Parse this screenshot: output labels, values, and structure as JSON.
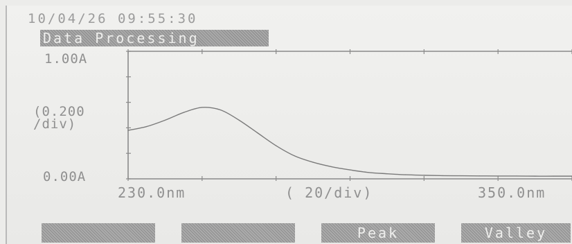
{
  "header": {
    "timestamp": "10/04/26 09:55:30",
    "mode_title": "Data Processing"
  },
  "axes": {
    "y_top_label": "1.00A",
    "y_scale_label_1": "(0.200",
    "y_scale_label_2": "/div)",
    "y_bottom_label": "0.00A",
    "x_start_label": "230.0nm",
    "x_scale_label": "(  20/div)",
    "x_end_label": "350.0nm"
  },
  "softkeys": [
    {
      "label": ""
    },
    {
      "label": ""
    },
    {
      "label": "Peak"
    },
    {
      "label": "Valley"
    }
  ],
  "chart_data": {
    "type": "line",
    "xlim": [
      230,
      350
    ],
    "ylim": [
      0,
      1
    ],
    "x_unit": "nm",
    "y_unit": "A",
    "series": [
      {
        "x": [
          230,
          235,
          240,
          245,
          250,
          255,
          260,
          265,
          270,
          275,
          280,
          285,
          290,
          295,
          300,
          305,
          310,
          315,
          320,
          325,
          330,
          335,
          340,
          345,
          350
        ],
        "y": [
          0.38,
          0.41,
          0.46,
          0.52,
          0.56,
          0.54,
          0.46,
          0.36,
          0.26,
          0.18,
          0.13,
          0.095,
          0.07,
          0.05,
          0.04,
          0.032,
          0.028,
          0.025,
          0.024,
          0.023,
          0.022,
          0.022,
          0.021,
          0.021,
          0.021
        ]
      }
    ]
  }
}
